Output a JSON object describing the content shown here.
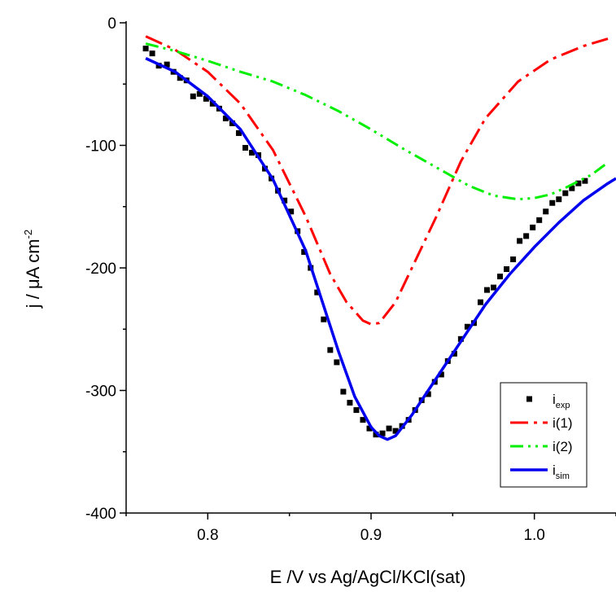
{
  "chart_data": {
    "type": "line",
    "xlabel": "E /V vs Ag/AgCl/KCl(sat)",
    "ylabel_parts": {
      "main": "j / μA cm",
      "sup": "-2"
    },
    "xlim": [
      0.75,
      1.05
    ],
    "ylim": [
      -400,
      0
    ],
    "x_ticks": [
      0.8,
      0.9,
      1.0
    ],
    "x_tick_labels": [
      "0.8",
      "0.9",
      "1.0"
    ],
    "y_ticks": [
      0,
      -100,
      -200,
      -300,
      -400
    ],
    "y_tick_labels": [
      "0",
      "-100",
      "-200",
      "-300",
      "-400"
    ],
    "grid": false,
    "legend_position": "bottom-right",
    "series": [
      {
        "key": "exp",
        "legend_main": "i",
        "legend_sub": "exp",
        "style": "markers",
        "color": "#000000",
        "points": [
          [
            0.762,
            -21
          ],
          [
            0.766,
            -25
          ],
          [
            0.77,
            -35
          ],
          [
            0.775,
            -34
          ],
          [
            0.779,
            -40
          ],
          [
            0.783,
            -45
          ],
          [
            0.787,
            -47
          ],
          [
            0.791,
            -60
          ],
          [
            0.795,
            -58
          ],
          [
            0.799,
            -62
          ],
          [
            0.803,
            -66
          ],
          [
            0.807,
            -70
          ],
          [
            0.811,
            -78
          ],
          [
            0.815,
            -82
          ],
          [
            0.819,
            -90
          ],
          [
            0.823,
            -102
          ],
          [
            0.827,
            -106
          ],
          [
            0.831,
            -108
          ],
          [
            0.835,
            -119
          ],
          [
            0.839,
            -127
          ],
          [
            0.843,
            -137
          ],
          [
            0.847,
            -145
          ],
          [
            0.851,
            -154
          ],
          [
            0.855,
            -170
          ],
          [
            0.859,
            -187
          ],
          [
            0.863,
            -200
          ],
          [
            0.867,
            -220
          ],
          [
            0.871,
            -242
          ],
          [
            0.875,
            -267
          ],
          [
            0.879,
            -277
          ],
          [
            0.883,
            -301
          ],
          [
            0.887,
            -310
          ],
          [
            0.891,
            -316
          ],
          [
            0.895,
            -324
          ],
          [
            0.899,
            -331
          ],
          [
            0.903,
            -336
          ],
          [
            0.907,
            -335
          ],
          [
            0.911,
            -331
          ],
          [
            0.915,
            -333
          ],
          [
            0.919,
            -329
          ],
          [
            0.923,
            -324
          ],
          [
            0.927,
            -316
          ],
          [
            0.931,
            -308
          ],
          [
            0.935,
            -303
          ],
          [
            0.939,
            -293
          ],
          [
            0.943,
            -287
          ],
          [
            0.947,
            -276
          ],
          [
            0.951,
            -270
          ],
          [
            0.955,
            -258
          ],
          [
            0.959,
            -248
          ],
          [
            0.963,
            -245
          ],
          [
            0.967,
            -228
          ],
          [
            0.971,
            -218
          ],
          [
            0.975,
            -216
          ],
          [
            0.979,
            -207
          ],
          [
            0.983,
            -201
          ],
          [
            0.987,
            -193
          ],
          [
            0.991,
            -178
          ],
          [
            0.995,
            -174
          ],
          [
            0.999,
            -167
          ],
          [
            1.003,
            -161
          ],
          [
            1.007,
            -154
          ],
          [
            1.011,
            -147
          ],
          [
            1.015,
            -144
          ],
          [
            1.019,
            -139
          ],
          [
            1.023,
            -135
          ],
          [
            1.027,
            -131
          ],
          [
            1.031,
            -129
          ]
        ]
      },
      {
        "key": "i1",
        "legend_main": "i(1)",
        "legend_sub": "",
        "style": "dashdot",
        "color": "#ff0000",
        "points": [
          [
            0.762,
            -11
          ],
          [
            0.78,
            -22
          ],
          [
            0.8,
            -40
          ],
          [
            0.82,
            -66
          ],
          [
            0.84,
            -104
          ],
          [
            0.86,
            -158
          ],
          [
            0.875,
            -205
          ],
          [
            0.885,
            -228
          ],
          [
            0.895,
            -243
          ],
          [
            0.9,
            -246
          ],
          [
            0.905,
            -245
          ],
          [
            0.915,
            -228
          ],
          [
            0.925,
            -200
          ],
          [
            0.94,
            -158
          ],
          [
            0.955,
            -113
          ],
          [
            0.97,
            -78
          ],
          [
            0.99,
            -48
          ],
          [
            1.01,
            -30
          ],
          [
            1.03,
            -19
          ],
          [
            1.045,
            -13
          ]
        ]
      },
      {
        "key": "i2",
        "legend_main": "i(2)",
        "legend_sub": "",
        "style": "dashdotdot",
        "color": "#00ee00",
        "points": [
          [
            0.762,
            -17
          ],
          [
            0.78,
            -23
          ],
          [
            0.8,
            -31
          ],
          [
            0.82,
            -40
          ],
          [
            0.84,
            -48
          ],
          [
            0.86,
            -59
          ],
          [
            0.88,
            -72
          ],
          [
            0.9,
            -87
          ],
          [
            0.92,
            -103
          ],
          [
            0.94,
            -118
          ],
          [
            0.96,
            -133
          ],
          [
            0.975,
            -141
          ],
          [
            0.99,
            -144
          ],
          [
            1.0,
            -143
          ],
          [
            1.01,
            -140
          ],
          [
            1.02,
            -134
          ],
          [
            1.035,
            -124
          ],
          [
            1.045,
            -114
          ]
        ]
      },
      {
        "key": "sim",
        "legend_main": "i",
        "legend_sub": "sim",
        "style": "solid",
        "color": "#0000ee",
        "points": [
          [
            0.762,
            -29
          ],
          [
            0.78,
            -40
          ],
          [
            0.8,
            -60
          ],
          [
            0.82,
            -87
          ],
          [
            0.84,
            -128
          ],
          [
            0.86,
            -186
          ],
          [
            0.88,
            -268
          ],
          [
            0.89,
            -305
          ],
          [
            0.9,
            -330
          ],
          [
            0.905,
            -337
          ],
          [
            0.91,
            -340
          ],
          [
            0.915,
            -337
          ],
          [
            0.925,
            -320
          ],
          [
            0.94,
            -290
          ],
          [
            0.955,
            -260
          ],
          [
            0.97,
            -230
          ],
          [
            0.985,
            -205
          ],
          [
            1.0,
            -183
          ],
          [
            1.015,
            -163
          ],
          [
            1.03,
            -145
          ],
          [
            1.045,
            -131
          ],
          [
            1.05,
            -127
          ]
        ]
      }
    ]
  }
}
